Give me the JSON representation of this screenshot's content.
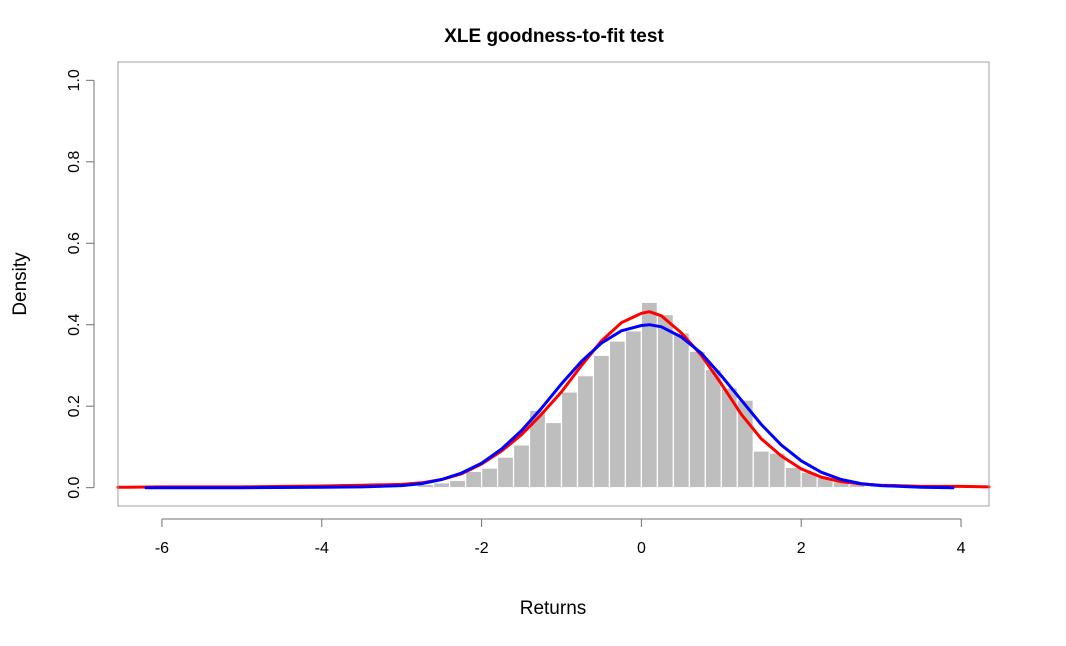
{
  "chart_data": {
    "type": "bar",
    "title": "XLE goodness-to-fit test",
    "xlabel": "Returns",
    "ylabel": "Density",
    "xlim": [
      -6.55,
      4.35
    ],
    "ylim": [
      -0.045,
      1.045
    ],
    "x_ticks": [
      -6,
      -4,
      -2,
      0,
      2,
      4
    ],
    "x_tick_labels": [
      "-6",
      "-4",
      "-2",
      "0",
      "2",
      "4"
    ],
    "y_ticks": [
      0.0,
      0.2,
      0.4,
      0.6,
      0.8,
      1.0
    ],
    "y_tick_labels": [
      "0.0",
      "0.2",
      "0.4",
      "0.6",
      "0.8",
      "1.0"
    ],
    "grid": false,
    "legend": "none",
    "histogram": {
      "bin_width": 0.2,
      "color": "#bebebe",
      "bins": [
        {
          "x0": -6.2,
          "density": 0.002
        },
        {
          "x0": -5.4,
          "density": 0.001
        },
        {
          "x0": -4.4,
          "density": 0.001
        },
        {
          "x0": -3.6,
          "density": 0.001
        },
        {
          "x0": -3.4,
          "density": 0.002
        },
        {
          "x0": -3.2,
          "density": 0.002
        },
        {
          "x0": -3.0,
          "density": 0.002
        },
        {
          "x0": -2.8,
          "density": 0.008
        },
        {
          "x0": -2.6,
          "density": 0.012
        },
        {
          "x0": -2.4,
          "density": 0.018
        },
        {
          "x0": -2.2,
          "density": 0.04
        },
        {
          "x0": -2.0,
          "density": 0.048
        },
        {
          "x0": -1.8,
          "density": 0.075
        },
        {
          "x0": -1.6,
          "density": 0.105
        },
        {
          "x0": -1.4,
          "density": 0.19
        },
        {
          "x0": -1.2,
          "density": 0.16
        },
        {
          "x0": -1.0,
          "density": 0.235
        },
        {
          "x0": -0.8,
          "density": 0.275
        },
        {
          "x0": -0.6,
          "density": 0.325
        },
        {
          "x0": -0.4,
          "density": 0.36
        },
        {
          "x0": -0.2,
          "density": 0.385
        },
        {
          "x0": 0.0,
          "density": 0.455
        },
        {
          "x0": 0.2,
          "density": 0.425
        },
        {
          "x0": 0.4,
          "density": 0.38
        },
        {
          "x0": 0.6,
          "density": 0.335
        },
        {
          "x0": 0.8,
          "density": 0.29
        },
        {
          "x0": 1.0,
          "density": 0.245
        },
        {
          "x0": 1.2,
          "density": 0.215
        },
        {
          "x0": 1.4,
          "density": 0.09
        },
        {
          "x0": 1.6,
          "density": 0.085
        },
        {
          "x0": 1.8,
          "density": 0.05
        },
        {
          "x0": 2.0,
          "density": 0.038
        },
        {
          "x0": 2.2,
          "density": 0.025
        },
        {
          "x0": 2.4,
          "density": 0.015
        },
        {
          "x0": 2.6,
          "density": 0.008
        },
        {
          "x0": 2.8,
          "density": 0.004
        },
        {
          "x0": 3.0,
          "density": 0.002
        },
        {
          "x0": 3.6,
          "density": 0.002
        },
        {
          "x0": 3.8,
          "density": 0.001
        }
      ]
    },
    "series": [
      {
        "color": "#ff0000",
        "x": [
          -6.55,
          -6.0,
          -5.0,
          -4.5,
          -4.0,
          -3.5,
          -3.0,
          -2.75,
          -2.5,
          -2.25,
          -2.0,
          -1.75,
          -1.5,
          -1.25,
          -1.0,
          -0.75,
          -0.5,
          -0.25,
          0.0,
          0.1,
          0.25,
          0.5,
          0.75,
          1.0,
          1.25,
          1.5,
          1.75,
          2.0,
          2.25,
          2.5,
          2.75,
          3.0,
          3.5,
          4.0,
          4.35
        ],
        "y": [
          0.001,
          0.002,
          0.002,
          0.003,
          0.004,
          0.006,
          0.008,
          0.012,
          0.02,
          0.034,
          0.058,
          0.09,
          0.13,
          0.18,
          0.235,
          0.3,
          0.36,
          0.405,
          0.428,
          0.432,
          0.422,
          0.38,
          0.325,
          0.255,
          0.18,
          0.12,
          0.078,
          0.046,
          0.026,
          0.015,
          0.009,
          0.006,
          0.003,
          0.003,
          0.002
        ]
      },
      {
        "color": "#0000ff",
        "x": [
          -6.2,
          -5.0,
          -4.0,
          -3.5,
          -3.0,
          -2.75,
          -2.5,
          -2.25,
          -2.0,
          -1.75,
          -1.5,
          -1.25,
          -1.0,
          -0.75,
          -0.5,
          -0.25,
          0.0,
          0.1,
          0.25,
          0.5,
          0.75,
          1.0,
          1.25,
          1.5,
          1.75,
          2.0,
          2.25,
          2.5,
          2.75,
          3.0,
          3.5,
          3.9
        ],
        "y": [
          0.0,
          0.0,
          0.001,
          0.002,
          0.005,
          0.01,
          0.02,
          0.036,
          0.06,
          0.095,
          0.14,
          0.195,
          0.255,
          0.31,
          0.355,
          0.385,
          0.398,
          0.4,
          0.395,
          0.37,
          0.33,
          0.275,
          0.215,
          0.155,
          0.105,
          0.066,
          0.038,
          0.02,
          0.01,
          0.005,
          0.001,
          0.0
        ]
      }
    ]
  }
}
